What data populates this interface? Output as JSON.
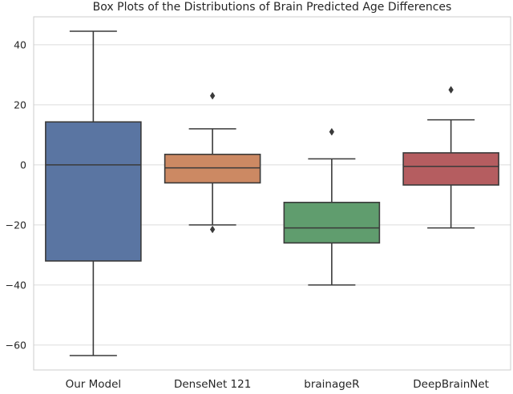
{
  "chart_data": {
    "type": "box",
    "title": "Box Plots of the Distributions of Brain Predicted Age Differences",
    "categories": [
      "Our Model",
      "DenseNet 121",
      "brainageR",
      "DeepBrainNet"
    ],
    "series": [
      {
        "name": "Our Model",
        "whisker_low": -63.5,
        "q1": -32.0,
        "median": 0.0,
        "q3": 14.3,
        "whisker_high": 44.5,
        "outliers": [],
        "color": "#5a75a2"
      },
      {
        "name": "DenseNet 121",
        "whisker_low": -20.0,
        "q1": -6.0,
        "median": -1.0,
        "q3": 3.5,
        "whisker_high": 12.0,
        "outliers": [
          23,
          -21.5
        ],
        "color": "#cc8963"
      },
      {
        "name": "brainageR",
        "whisker_low": -40.0,
        "q1": -26.0,
        "median": -21.0,
        "q3": -12.5,
        "whisker_high": 2.0,
        "outliers": [
          11
        ],
        "color": "#609d6e"
      },
      {
        "name": "DeepBrainNet",
        "whisker_low": -21.0,
        "q1": -6.7,
        "median": -0.5,
        "q3": 4.0,
        "whisker_high": 15.0,
        "outliers": [
          25
        ],
        "color": "#b55d60"
      }
    ],
    "ylim": [
      -68.3,
      49.3
    ],
    "yticks": [
      40,
      20,
      0,
      -20,
      -40,
      -60
    ],
    "ytick_labels": [
      "40",
      "20",
      "0",
      "−20",
      "−40",
      "−60"
    ],
    "xlabel": "",
    "ylabel": "",
    "grid": "horizontal",
    "legend": "none",
    "styles": {
      "line_color": "#3a3a3a",
      "flier_color": "#3a3a3a",
      "grid_color": "#dcdcdc",
      "spine_color": "#cccccc",
      "text_color": "#262626",
      "background": "#ffffff"
    }
  }
}
